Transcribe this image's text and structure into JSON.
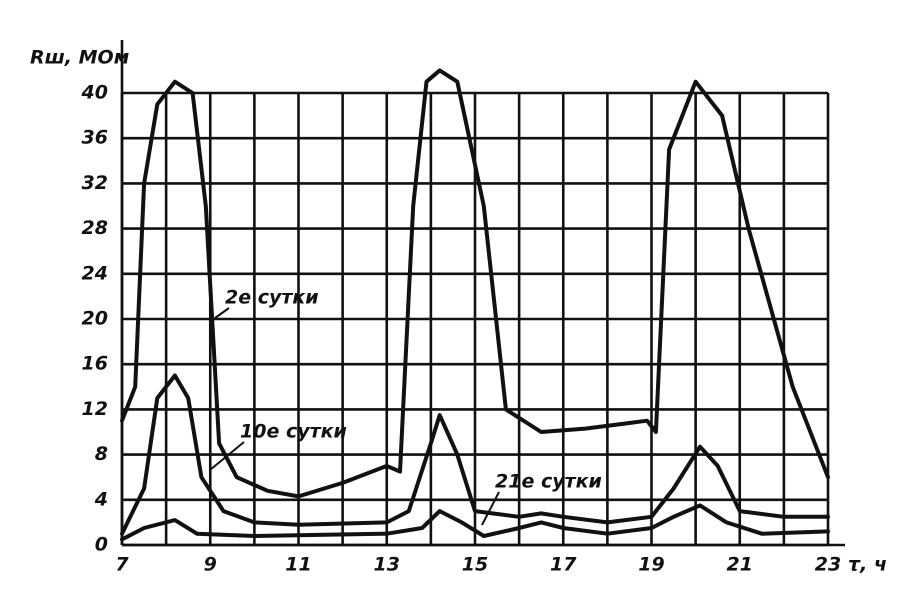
{
  "chart_data": {
    "type": "line",
    "y_label": "Rш, МОм",
    "x_label": "τ, ч",
    "xlim": [
      7,
      23
    ],
    "xticks": [
      7,
      9,
      11,
      13,
      15,
      17,
      19,
      21,
      23
    ],
    "ylim": [
      0,
      40
    ],
    "yticks": [
      0,
      4,
      8,
      12,
      16,
      20,
      24,
      28,
      32,
      36,
      40
    ],
    "grid": true,
    "series": [
      {
        "name": "2е сутки",
        "color": "#111111",
        "x": [
          7,
          7.3,
          7.5,
          7.8,
          8.2,
          8.6,
          8.9,
          9.2,
          9.6,
          10.3,
          11,
          12,
          13,
          13.3,
          13.6,
          13.9,
          14.2,
          14.6,
          15.2,
          15.7,
          16.5,
          17.5,
          18.5,
          18.9,
          19.1,
          19.4,
          20,
          20.6,
          21.2,
          22.2,
          23
        ],
        "values": [
          11,
          14,
          32,
          39,
          41,
          40,
          30,
          9,
          6,
          4.8,
          4.3,
          5.5,
          7,
          6.5,
          30,
          41,
          42,
          41,
          30,
          12,
          10,
          10.3,
          10.8,
          11,
          10,
          35,
          41,
          38,
          28,
          14,
          6
        ]
      },
      {
        "name": "10е сутки",
        "color": "#111111",
        "x": [
          7,
          7.5,
          7.8,
          8.2,
          8.5,
          8.8,
          9.3,
          10,
          11,
          13,
          13.5,
          14,
          14.2,
          14.6,
          15,
          16,
          16.5,
          17,
          18,
          19,
          19.5,
          20.1,
          20.5,
          21,
          22,
          23
        ],
        "values": [
          1,
          5,
          13,
          15,
          13,
          6,
          3,
          2,
          1.8,
          2,
          3,
          9,
          11.5,
          8,
          3,
          2.5,
          2.8,
          2.5,
          2,
          2.5,
          5,
          8.7,
          7,
          3,
          2.5,
          2.5
        ]
      },
      {
        "name": "21е сутки",
        "color": "#111111",
        "x": [
          7,
          7.5,
          8.2,
          8.7,
          10,
          13,
          13.8,
          14.2,
          14.7,
          15.2,
          16,
          16.5,
          17,
          18,
          19,
          19.5,
          20.1,
          20.7,
          21.5,
          23
        ],
        "values": [
          0.5,
          1.5,
          2.2,
          1,
          0.8,
          1,
          1.5,
          3,
          2,
          0.8,
          1.5,
          2,
          1.5,
          1,
          1.5,
          2.5,
          3.5,
          2,
          1,
          1.2
        ]
      }
    ]
  }
}
